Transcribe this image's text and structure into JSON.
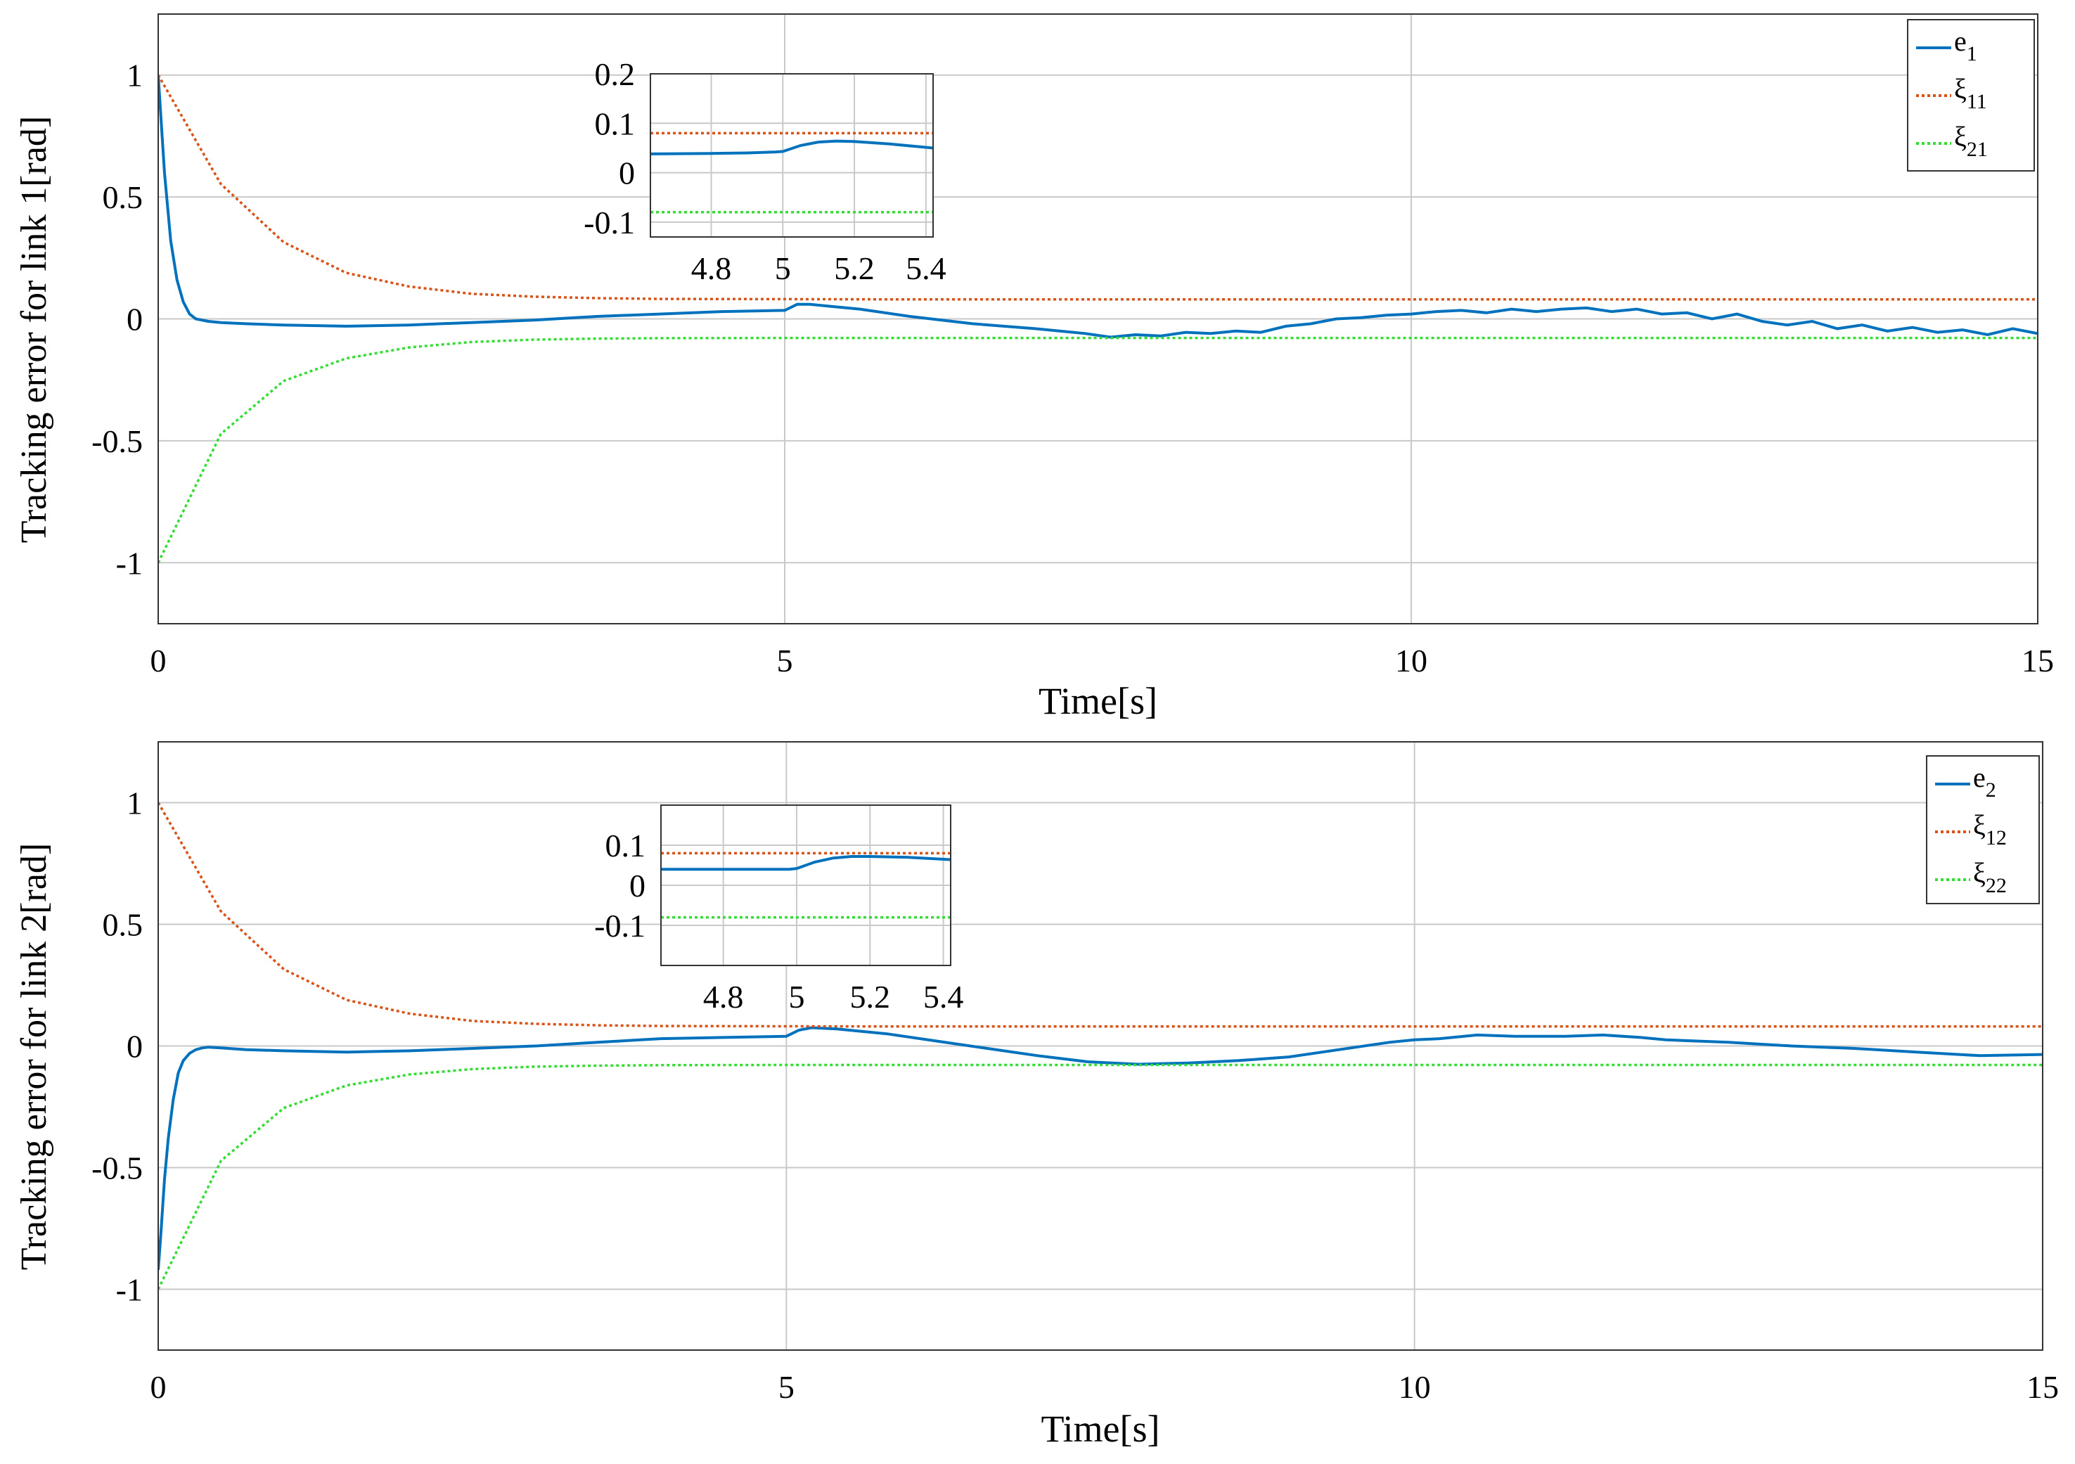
{
  "chart_data": [
    {
      "id": "top",
      "type": "line",
      "xlabel": "Time[s]",
      "ylabel": "Tracking error for link 1[rad]",
      "xlim": [
        0,
        15
      ],
      "ylim": [
        -1.25,
        1.25
      ],
      "grid": true,
      "legend_position": "top-right",
      "xticks": [
        0,
        5,
        10,
        15
      ],
      "xtick_labels": [
        "0",
        "5",
        "10",
        "15"
      ],
      "yticks": [
        1,
        0.5,
        0,
        -0.5,
        -1
      ],
      "ytick_labels": [
        "1",
        "0.5",
        "0",
        "-0.5",
        "-1"
      ],
      "legend": [
        {
          "base": "e",
          "sub": "1"
        },
        {
          "base": "ξ",
          "sub": "11"
        },
        {
          "base": "ξ",
          "sub": "21"
        }
      ],
      "series": [
        {
          "name": "e1",
          "color": "#0072BD",
          "style": "solid",
          "x": [
            0,
            0.05,
            0.1,
            0.15,
            0.2,
            0.25,
            0.3,
            0.4,
            0.5,
            0.7,
            1.0,
            1.5,
            2.0,
            2.5,
            3.0,
            3.5,
            4.0,
            4.5,
            5.0,
            5.1,
            5.2,
            5.4,
            5.6,
            6.0,
            6.5,
            7.0,
            7.4,
            7.6,
            7.8,
            8.0,
            8.2,
            8.4,
            8.6,
            8.8,
            9.0,
            9.2,
            9.4,
            9.6,
            9.8,
            10.0,
            10.2,
            10.4,
            10.6,
            10.8,
            11.0,
            11.2,
            11.4,
            11.6,
            11.8,
            12.0,
            12.2,
            12.4,
            12.6,
            12.8,
            13.0,
            13.2,
            13.4,
            13.6,
            13.8,
            14.0,
            14.2,
            14.4,
            14.6,
            14.8,
            15.0
          ],
          "y": [
            1.0,
            0.6,
            0.32,
            0.16,
            0.07,
            0.02,
            0.0,
            -0.01,
            -0.015,
            -0.02,
            -0.025,
            -0.03,
            -0.025,
            -0.015,
            -0.005,
            0.01,
            0.02,
            0.03,
            0.035,
            0.06,
            0.06,
            0.05,
            0.04,
            0.01,
            -0.02,
            -0.04,
            -0.06,
            -0.075,
            -0.065,
            -0.07,
            -0.055,
            -0.06,
            -0.05,
            -0.055,
            -0.03,
            -0.02,
            0.0,
            0.005,
            0.015,
            0.02,
            0.03,
            0.035,
            0.025,
            0.04,
            0.03,
            0.04,
            0.045,
            0.03,
            0.04,
            0.02,
            0.025,
            0.0,
            0.02,
            -0.01,
            -0.025,
            -0.01,
            -0.04,
            -0.025,
            -0.05,
            -0.035,
            -0.055,
            -0.045,
            -0.065,
            -0.04,
            -0.06
          ]
        },
        {
          "name": "ξ11",
          "color": "#D95319",
          "style": "dotted",
          "x": [
            0,
            0.5,
            1,
            1.5,
            2,
            2.5,
            3,
            3.5,
            4,
            5,
            6,
            8,
            10,
            12,
            15
          ],
          "y": [
            1.0,
            0.553,
            0.315,
            0.189,
            0.133,
            0.103,
            0.091,
            0.085,
            0.082,
            0.081,
            0.08,
            0.08,
            0.08,
            0.08,
            0.08
          ]
        },
        {
          "name": "ξ21",
          "color": "#33DD33",
          "style": "dotted",
          "x": [
            0,
            0.5,
            1,
            1.5,
            2,
            2.5,
            3,
            3.5,
            4,
            5,
            6,
            8,
            10,
            12,
            15
          ],
          "y": [
            -1.0,
            -0.472,
            -0.255,
            -0.162,
            -0.117,
            -0.095,
            -0.085,
            -0.081,
            -0.079,
            -0.078,
            -0.078,
            -0.078,
            -0.078,
            -0.078,
            -0.078
          ]
        }
      ],
      "inset": {
        "xlim": [
          4.63,
          5.42
        ],
        "ylim": [
          -0.13,
          0.2
        ],
        "xticks": [
          4.8,
          5.0,
          5.2,
          5.4
        ],
        "xtick_labels": [
          "4.8",
          "5",
          "5.2",
          "5.4"
        ],
        "yticks": [
          0.2,
          0.1,
          0,
          -0.1
        ],
        "ytick_labels": [
          "0.2",
          "0.1",
          "0",
          "-0.1"
        ],
        "series": [
          {
            "name": "e1",
            "color": "#0072BD",
            "style": "solid",
            "x": [
              4.63,
              4.8,
              4.9,
              4.98,
              5.0,
              5.05,
              5.1,
              5.15,
              5.2,
              5.3,
              5.42
            ],
            "y": [
              0.038,
              0.039,
              0.04,
              0.042,
              0.043,
              0.055,
              0.062,
              0.064,
              0.063,
              0.058,
              0.05
            ]
          },
          {
            "name": "ξ11",
            "color": "#D95319",
            "style": "dotted",
            "x": [
              4.63,
              5.42
            ],
            "y": [
              0.08,
              0.08
            ]
          },
          {
            "name": "ξ21",
            "color": "#33DD33",
            "style": "dotted",
            "x": [
              4.63,
              5.42
            ],
            "y": [
              -0.08,
              -0.08
            ]
          }
        ]
      }
    },
    {
      "id": "bottom",
      "type": "line",
      "xlabel": "Time[s]",
      "ylabel": "Tracking error for link 2[rad]",
      "xlim": [
        0,
        15
      ],
      "ylim": [
        -1.25,
        1.25
      ],
      "grid": true,
      "legend_position": "top-right",
      "xticks": [
        0,
        5,
        10,
        15
      ],
      "xtick_labels": [
        "0",
        "5",
        "10",
        "15"
      ],
      "yticks": [
        1,
        0.5,
        0,
        -0.5,
        -1
      ],
      "ytick_labels": [
        "1",
        "0.5",
        "0",
        "-0.5",
        "-1"
      ],
      "legend": [
        {
          "base": "e",
          "sub": "2"
        },
        {
          "base": "ξ",
          "sub": "12"
        },
        {
          "base": "ξ",
          "sub": "22"
        }
      ],
      "series": [
        {
          "name": "e2",
          "color": "#0072BD",
          "style": "solid",
          "x": [
            0,
            0.02,
            0.05,
            0.08,
            0.12,
            0.16,
            0.2,
            0.25,
            0.3,
            0.35,
            0.4,
            0.5,
            0.7,
            1.0,
            1.5,
            2.0,
            2.5,
            3.0,
            3.5,
            4.0,
            4.5,
            5.0,
            5.1,
            5.2,
            5.4,
            5.8,
            6.2,
            6.6,
            7.0,
            7.4,
            7.8,
            8.2,
            8.6,
            9.0,
            9.4,
            9.8,
            10.0,
            10.2,
            10.5,
            10.8,
            11.2,
            11.5,
            11.8,
            12.0,
            12.5,
            13.0,
            13.5,
            14.0,
            14.5,
            15.0
          ],
          "y": [
            -0.92,
            -0.78,
            -0.55,
            -0.38,
            -0.22,
            -0.11,
            -0.06,
            -0.03,
            -0.015,
            -0.008,
            -0.005,
            -0.008,
            -0.015,
            -0.02,
            -0.025,
            -0.02,
            -0.01,
            0.0,
            0.015,
            0.03,
            0.035,
            0.04,
            0.065,
            0.075,
            0.07,
            0.05,
            0.02,
            -0.01,
            -0.04,
            -0.065,
            -0.075,
            -0.07,
            -0.06,
            -0.045,
            -0.015,
            0.015,
            0.025,
            0.03,
            0.045,
            0.04,
            0.04,
            0.045,
            0.035,
            0.025,
            0.015,
            0.0,
            -0.01,
            -0.025,
            -0.04,
            -0.035
          ]
        },
        {
          "name": "ξ12",
          "color": "#D95319",
          "style": "dotted",
          "x": [
            0,
            0.5,
            1,
            1.5,
            2,
            2.5,
            3,
            3.5,
            4,
            5,
            6,
            8,
            10,
            12,
            15
          ],
          "y": [
            1.0,
            0.553,
            0.315,
            0.189,
            0.133,
            0.103,
            0.091,
            0.085,
            0.082,
            0.081,
            0.08,
            0.08,
            0.08,
            0.08,
            0.08
          ]
        },
        {
          "name": "ξ22",
          "color": "#33DD33",
          "style": "dotted",
          "x": [
            0,
            0.5,
            1,
            1.5,
            2,
            2.5,
            3,
            3.5,
            4,
            5,
            6,
            8,
            10,
            12,
            15
          ],
          "y": [
            -1.0,
            -0.472,
            -0.255,
            -0.162,
            -0.117,
            -0.095,
            -0.085,
            -0.081,
            -0.079,
            -0.078,
            -0.078,
            -0.078,
            -0.078,
            -0.078,
            -0.078
          ]
        }
      ],
      "inset": {
        "xlim": [
          4.63,
          5.42
        ],
        "ylim": [
          -0.2,
          0.2
        ],
        "xticks": [
          4.8,
          5.0,
          5.2,
          5.4
        ],
        "xtick_labels": [
          "4.8",
          "5",
          "5.2",
          "5.4"
        ],
        "yticks": [
          0.1,
          0,
          -0.1
        ],
        "ytick_labels": [
          "0.1",
          "0",
          "-0.1"
        ],
        "series": [
          {
            "name": "e2",
            "color": "#0072BD",
            "style": "solid",
            "x": [
              4.63,
              4.8,
              4.9,
              4.98,
              5.0,
              5.05,
              5.1,
              5.15,
              5.2,
              5.3,
              5.42
            ],
            "y": [
              0.04,
              0.04,
              0.04,
              0.04,
              0.042,
              0.058,
              0.068,
              0.072,
              0.072,
              0.07,
              0.064
            ]
          },
          {
            "name": "ξ12",
            "color": "#D95319",
            "style": "dotted",
            "x": [
              4.63,
              5.42
            ],
            "y": [
              0.08,
              0.08
            ]
          },
          {
            "name": "ξ22",
            "color": "#33DD33",
            "style": "dotted",
            "x": [
              4.63,
              5.42
            ],
            "y": [
              -0.08,
              -0.08
            ]
          }
        ]
      }
    }
  ]
}
